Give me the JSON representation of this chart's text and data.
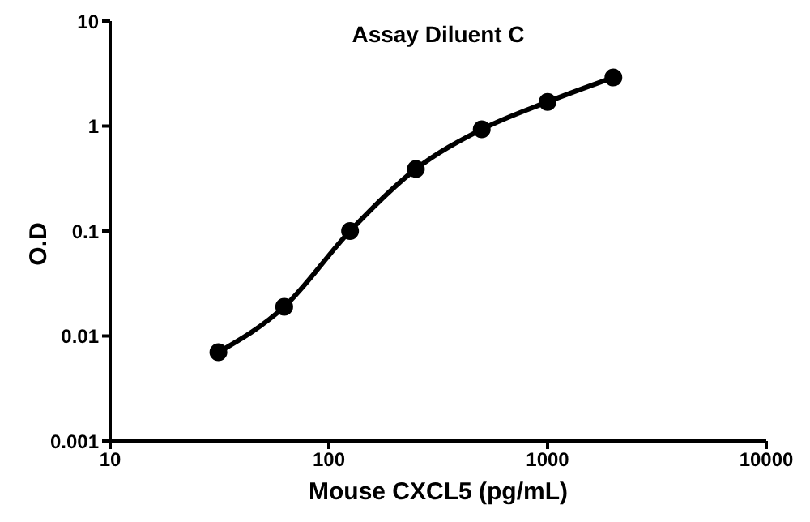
{
  "chart_data": {
    "type": "line",
    "title": "Assay Diluent C",
    "xlabel": "Mouse CXCL5 (pg/mL)",
    "ylabel": "O.D",
    "x": [
      31.25,
      62.5,
      125,
      250,
      500,
      1000,
      2000
    ],
    "series": [
      {
        "color": "#000000",
        "values": [
          0.007,
          0.019,
          0.1,
          0.39,
          0.93,
          1.7,
          2.9
        ]
      }
    ],
    "xlim": [
      10,
      10000
    ],
    "xticks": [
      10,
      100,
      1000,
      10000
    ],
    "ylim": [
      0.001,
      10
    ],
    "yticks": [
      0.001,
      0.01,
      0.1,
      1,
      10
    ],
    "log": "xy",
    "marker": "circle",
    "line_style": "solid"
  }
}
